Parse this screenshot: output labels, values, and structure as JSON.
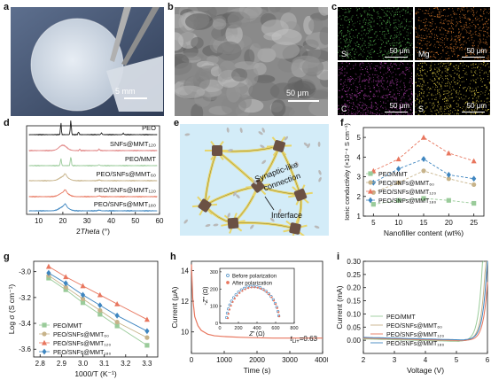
{
  "labels": {
    "a": "a",
    "b": "b",
    "c": "c",
    "d": "d",
    "e": "e",
    "f": "f",
    "g": "g",
    "h": "h",
    "i": "i"
  },
  "panel_a": {
    "scale": "5 mm"
  },
  "panel_b": {
    "scale": "50 μm"
  },
  "panel_c": {
    "tiles": [
      {
        "element": "Si",
        "scale": "50 μm",
        "color": "#4fa64a"
      },
      {
        "element": "Mg",
        "scale": "50 μm",
        "color": "#d9792c"
      },
      {
        "element": "C",
        "scale": "50 μm",
        "color": "#b13fae"
      },
      {
        "element": "S",
        "scale": "50 μm",
        "color": "#d6c341"
      }
    ]
  },
  "panel_e": {
    "label1": "Synaptic-like",
    "label2": "connection",
    "label3": "Interface"
  },
  "chart_data": [
    {
      "panel": "d",
      "type": "line",
      "xlabel": "2Theta (°)",
      "xlim": [
        5,
        60
      ],
      "xticks": [
        10,
        20,
        30,
        40,
        50,
        60
      ],
      "series": [
        {
          "name": "PEO",
          "color": "#222222"
        },
        {
          "name": "SNFs@MMT₁₂₀",
          "color": "#e08080"
        },
        {
          "name": "PEO/MMT",
          "color": "#9acb9a"
        },
        {
          "name": "PEO/SNFs@MMT₆₀",
          "color": "#c7b38a"
        },
        {
          "name": "PEO/SNFs@MMT₁₂₀",
          "color": "#e8765e"
        },
        {
          "name": "PEO/SNFs@MMT₁₈₀",
          "color": "#3f86c0"
        }
      ]
    },
    {
      "panel": "f",
      "type": "line",
      "xlabel": "Nanofiller content (wt%)",
      "ylabel": "Ionic conductivity (×10⁻⁴ S cm⁻¹)",
      "xlim": [
        3,
        27
      ],
      "ylim": [
        1,
        5.5
      ],
      "xticks": [
        5,
        10,
        15,
        20,
        25
      ],
      "yticks": [
        1,
        2,
        3,
        4,
        5
      ],
      "categories": [
        5,
        10,
        15,
        20,
        25
      ],
      "series": [
        {
          "name": "PEO/MMT",
          "color": "#9acb9a",
          "marker": "square",
          "values": [
            1.6,
            1.8,
            1.9,
            1.8,
            1.65
          ]
        },
        {
          "name": "PEO/SNFs@MMT₆₀",
          "color": "#c7b38a",
          "marker": "circle",
          "values": [
            2.2,
            2.7,
            3.3,
            2.9,
            2.6
          ]
        },
        {
          "name": "PEO/SNFs@MMT₁₂₀",
          "color": "#e8765e",
          "marker": "triangle",
          "values": [
            3.3,
            3.9,
            5.0,
            4.2,
            3.8
          ]
        },
        {
          "name": "PEO/SNFs@MMT₁₈₀",
          "color": "#3f86c0",
          "marker": "diamond",
          "values": [
            2.7,
            3.4,
            3.9,
            3.1,
            2.9
          ]
        }
      ]
    },
    {
      "panel": "g",
      "type": "line",
      "xlabel": "1000/T (K⁻¹)",
      "ylabel": "Log σ (S cm⁻¹)",
      "xlim": [
        2.77,
        3.35
      ],
      "ylim": [
        -3.66,
        -2.92
      ],
      "xticks": [
        2.8,
        2.9,
        3.0,
        3.1,
        3.2,
        3.3
      ],
      "yticks": [
        -3.0,
        -3.2,
        -3.4,
        -3.6
      ],
      "categories": [
        2.84,
        2.92,
        3.0,
        3.08,
        3.16,
        3.3
      ],
      "series": [
        {
          "name": "PEO/MMT",
          "color": "#9acb9a",
          "marker": "square",
          "values": [
            -3.05,
            -3.14,
            -3.24,
            -3.33,
            -3.42,
            -3.57
          ]
        },
        {
          "name": "PEO/SNFs@MMT₆₀",
          "color": "#c7b38a",
          "marker": "circle",
          "values": [
            -3.03,
            -3.12,
            -3.21,
            -3.3,
            -3.39,
            -3.51
          ]
        },
        {
          "name": "PEO/SNFs@MMT₁₂₀",
          "color": "#e8765e",
          "marker": "triangle",
          "values": [
            -2.96,
            -3.04,
            -3.11,
            -3.18,
            -3.25,
            -3.37
          ]
        },
        {
          "name": "PEO/SNFs@MMT₁₈₀",
          "color": "#3f86c0",
          "marker": "diamond",
          "values": [
            -3.01,
            -3.09,
            -3.18,
            -3.26,
            -3.34,
            -3.46
          ]
        }
      ]
    },
    {
      "panel": "h",
      "type": "line",
      "xlabel": "Time (s)",
      "ylabel": "Current (μA)",
      "xlim": [
        0,
        4000
      ],
      "ylim": [
        8.6,
        14.6
      ],
      "xticks": [
        0,
        1000,
        2000,
        3000,
        4000
      ],
      "yticks": [
        10,
        12,
        14
      ],
      "annotation": "tLi+=0.63",
      "series": [
        {
          "color": "#e8765e",
          "x": [
            0,
            40,
            100,
            200,
            300,
            500,
            700,
            1000,
            1500,
            2000,
            2500,
            3000,
            3500,
            4000
          ],
          "values": [
            14.4,
            12.2,
            11.0,
            10.4,
            10.1,
            9.85,
            9.75,
            9.7,
            9.65,
            9.62,
            9.6,
            9.6,
            9.6,
            9.6
          ]
        }
      ],
      "inset": {
        "xlabel": "Z′ (Ω)",
        "ylabel": "-Z″ (Ω)",
        "xlim": [
          0,
          800
        ],
        "ylim": [
          0,
          320
        ],
        "xticks": [
          0,
          200,
          400,
          600,
          800
        ],
        "yticks": [
          0,
          100,
          200,
          300
        ],
        "series": [
          {
            "name": "Before polarization",
            "color": "#3f86c0"
          },
          {
            "name": "After polarization",
            "color": "#e8765e"
          }
        ]
      }
    },
    {
      "panel": "i",
      "type": "line",
      "xlabel": "Voltage (V)",
      "ylabel": "Current (mA)",
      "xlim": [
        2,
        6
      ],
      "ylim": [
        -0.05,
        0.3
      ],
      "xticks": [
        2,
        3,
        4,
        5,
        6
      ],
      "yticks": [
        0.0,
        0.05,
        0.1,
        0.15,
        0.2,
        0.25,
        0.3
      ],
      "series": [
        {
          "name": "PEO/MMT",
          "color": "#9acb9a",
          "onset": 5.6
        },
        {
          "name": "PEO/SNFs@MMT₆₀",
          "color": "#c7b38a",
          "onset": 5.7
        },
        {
          "name": "PEO/SNFs@MMT₁₂₀",
          "color": "#e8765e",
          "onset": 5.8
        },
        {
          "name": "PEO/SNFs@MMT₁₈₀",
          "color": "#3f86c0",
          "onset": 5.75
        }
      ]
    }
  ]
}
